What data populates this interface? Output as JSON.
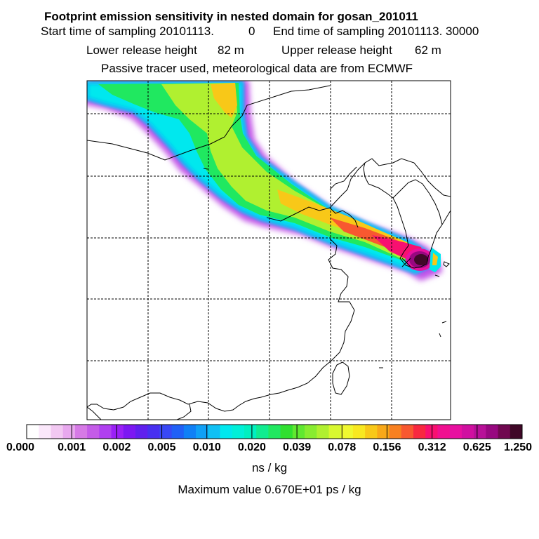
{
  "header": {
    "title": "Footprint emission sensitivity in nested domain for gosan_201011",
    "start_label": "Start time of sampling 20101113.",
    "start_value": "0",
    "end_label": "End time of sampling 20101113. 30000",
    "lower_label": "Lower release height",
    "lower_value": "82 m",
    "upper_label": "Upper release height",
    "upper_value": "62 m",
    "info": "Passive tracer used, meteorological data are from ECMWF"
  },
  "colorbar": {
    "labels": [
      "0.000",
      "0.001",
      "0.002",
      "0.005",
      "0.010",
      "0.020",
      "0.039",
      "0.078",
      "0.156",
      "0.312",
      "0.625",
      "1.250"
    ],
    "colors": [
      "#ffffff",
      "#fbe8fb",
      "#f2c8f2",
      "#e8a8ee",
      "#d67ae6",
      "#c45ce8",
      "#b040f0",
      "#9a20f6",
      "#7c18f2",
      "#6020ee",
      "#4830f0",
      "#3848f6",
      "#2060f6",
      "#1080f6",
      "#10a0f6",
      "#10c0f4",
      "#00e8ee",
      "#00f0d8",
      "#00f0c0",
      "#10ec90",
      "#20e860",
      "#30e030",
      "#60e830",
      "#88ec30",
      "#b0f030",
      "#d8f830",
      "#f0f830",
      "#f8e820",
      "#f8c818",
      "#f8a818",
      "#f88020",
      "#f85830",
      "#f82840",
      "#f81070",
      "#f01090",
      "#e810a0",
      "#d010a0",
      "#b81098",
      "#980880",
      "#700850",
      "#400828"
    ],
    "units": "ns / kg"
  },
  "max_value_text": "Maximum value  0.670E+01 ps / kg"
}
